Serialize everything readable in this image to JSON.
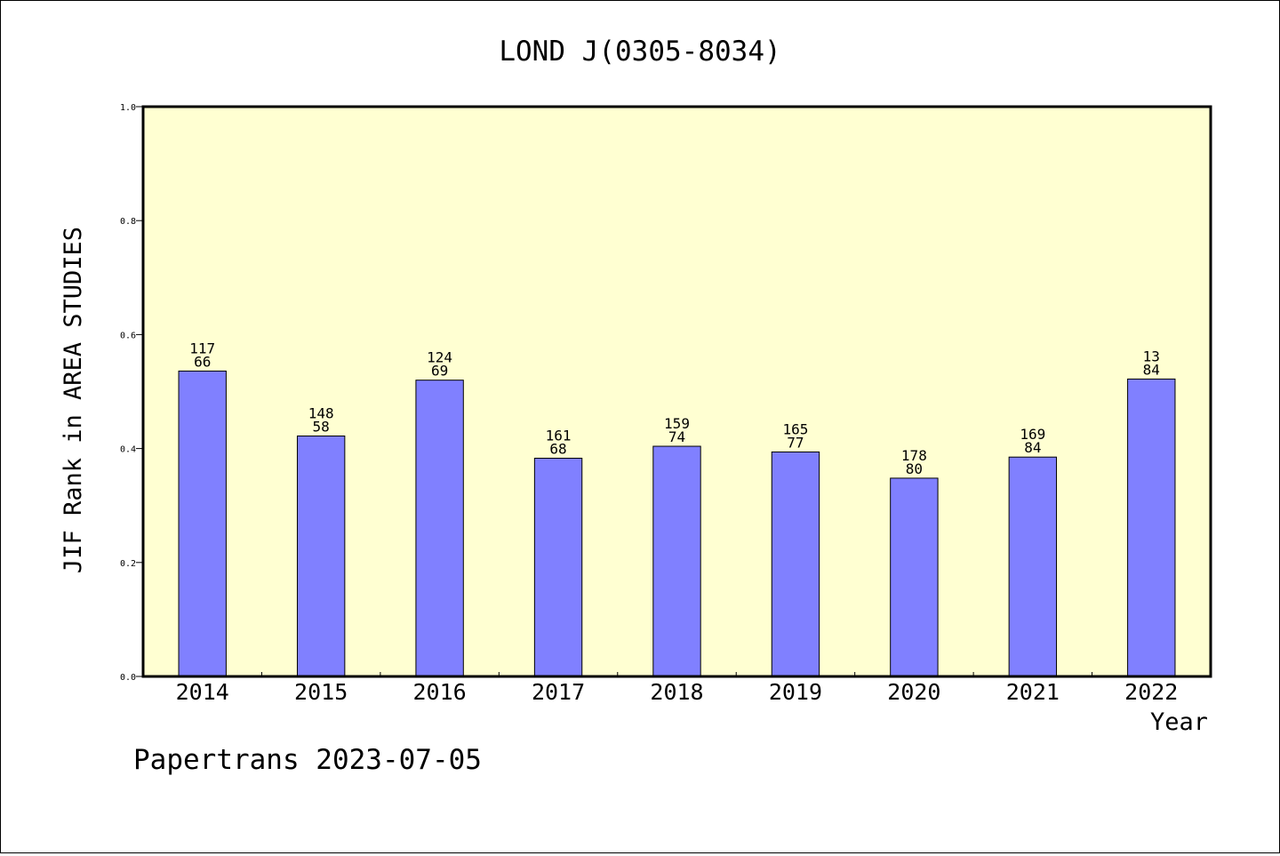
{
  "footer": "Papertrans 2023-07-05",
  "chart_data": {
    "type": "bar",
    "title": "LOND J(0305-8034)",
    "xlabel": "Year",
    "ylabel": "JIF Rank in AREA STUDIES",
    "ylim": [
      0,
      1.0
    ],
    "yticks": [
      "0.0",
      "0.2",
      "0.4",
      "0.6",
      "0.8",
      "1.0"
    ],
    "grid": false,
    "colors": {
      "plot_bg": "#ffffd2",
      "bar": "#8080ff"
    },
    "categories": [
      "2014",
      "2015",
      "2016",
      "2017",
      "2018",
      "2019",
      "2020",
      "2021",
      "2022"
    ],
    "values": [
      0.536,
      0.422,
      0.52,
      0.383,
      0.404,
      0.394,
      0.348,
      0.385,
      0.522
    ],
    "label_totals": [
      "117",
      "148",
      "124",
      "161",
      "159",
      "165",
      "178",
      "169",
      "13"
    ],
    "label_ranks": [
      "66",
      "58",
      "69",
      "68",
      "74",
      "77",
      "80",
      "84",
      "84"
    ]
  }
}
